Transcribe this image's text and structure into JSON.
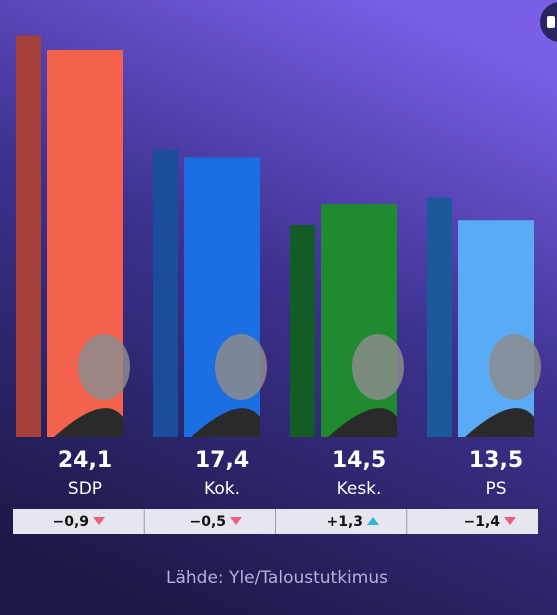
{
  "chart_data": {
    "type": "bar",
    "categories": [
      "SDP",
      "Kok.",
      "Kesk.",
      "PS"
    ],
    "series": [
      {
        "colors": [
          "#a5403a",
          "#1a4d9c",
          "#145c26",
          "#1a5a9a"
        ],
        "values": [
          25.0,
          17.9,
          13.2,
          14.9
        ]
      },
      {
        "colors": [
          "#f4624e",
          "#1c6fe2",
          "#1f8a2f",
          "#5aabf6"
        ],
        "values": [
          24.1,
          17.4,
          14.5,
          13.5
        ],
        "value_labels": [
          "24,1",
          "17,4",
          "14,5",
          "13,5"
        ]
      }
    ],
    "change": {
      "values": [
        -0.9,
        -0.5,
        1.3,
        -1.4
      ],
      "value_labels": [
        "−0,9",
        "−0,5",
        "+1,3",
        "−1,4"
      ]
    },
    "source": "Lähde: Yle/Taloustutkimus"
  }
}
